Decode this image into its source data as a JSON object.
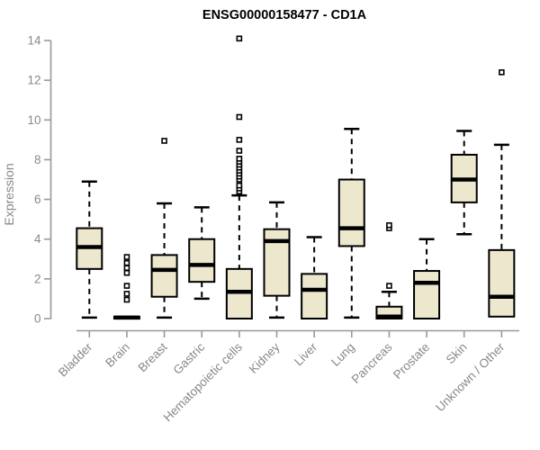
{
  "title": "ENSG00000158477 - CD1A",
  "ylabel": "Expression",
  "style": {
    "background": "#FFFFFF",
    "box_fill": "#EDE7CE",
    "line_color": "#000000",
    "axis_color": "#999999",
    "label_color": "#888888",
    "title_color": "#000000"
  },
  "chart_data": {
    "type": "boxplot",
    "title": "ENSG00000158477 - CD1A",
    "xlabel": "",
    "ylabel": "Expression",
    "ylim": [
      0,
      14
    ],
    "yticks": [
      0,
      2,
      4,
      6,
      8,
      10,
      12,
      14
    ],
    "grid": false,
    "categories": [
      "Bladder",
      "Brain",
      "Breast",
      "Gastric",
      "Hematopoietic cells",
      "Kidney",
      "Liver",
      "Lung",
      "Pancreas",
      "Prostate",
      "Skin",
      "Unknown / Other"
    ],
    "boxes": [
      {
        "category": "Bladder",
        "whisker_low": 0.05,
        "q1": 2.5,
        "median": 3.6,
        "q3": 4.55,
        "whisker_high": 6.9,
        "outliers": []
      },
      {
        "category": "Brain",
        "whisker_low": 0,
        "q1": 0,
        "median": 0.05,
        "q3": 0.1,
        "whisker_high": 0.1,
        "outliers": [
          3.1,
          2.8,
          2.55,
          2.3,
          1.65,
          1.25,
          0.95
        ]
      },
      {
        "category": "Breast",
        "whisker_low": 0.05,
        "q1": 1.1,
        "median": 2.45,
        "q3": 3.2,
        "whisker_high": 5.8,
        "outliers": [
          8.95
        ]
      },
      {
        "category": "Gastric",
        "whisker_low": 1.0,
        "q1": 1.85,
        "median": 2.7,
        "q3": 4.0,
        "whisker_high": 5.6,
        "outliers": []
      },
      {
        "category": "Hematopoietic cells",
        "whisker_low": 0,
        "q1": 0,
        "median": 1.35,
        "q3": 2.5,
        "whisker_high": 6.2,
        "outliers": [
          6.4,
          6.55,
          6.7,
          7.0,
          7.15,
          7.3,
          7.45,
          7.6,
          7.75,
          7.9,
          8.05,
          8.45,
          9.0,
          10.15,
          14.1
        ]
      },
      {
        "category": "Kidney",
        "whisker_low": 0.05,
        "q1": 1.15,
        "median": 3.9,
        "q3": 4.5,
        "whisker_high": 5.85,
        "outliers": []
      },
      {
        "category": "Liver",
        "whisker_low": 0,
        "q1": 0,
        "median": 1.45,
        "q3": 2.25,
        "whisker_high": 4.1,
        "outliers": []
      },
      {
        "category": "Lung",
        "whisker_low": 0.05,
        "q1": 3.65,
        "median": 4.55,
        "q3": 7.0,
        "whisker_high": 9.55,
        "outliers": []
      },
      {
        "category": "Pancreas",
        "whisker_low": 0,
        "q1": 0,
        "median": 0.1,
        "q3": 0.6,
        "whisker_high": 1.35,
        "outliers": [
          1.65,
          4.55,
          4.7
        ]
      },
      {
        "category": "Prostate",
        "whisker_low": 0,
        "q1": 0,
        "median": 1.8,
        "q3": 2.4,
        "whisker_high": 4.0,
        "outliers": []
      },
      {
        "category": "Skin",
        "whisker_low": 4.25,
        "q1": 5.85,
        "median": 7.0,
        "q3": 8.25,
        "whisker_high": 9.45,
        "outliers": []
      },
      {
        "category": "Unknown / Other",
        "whisker_low": 0.1,
        "q1": 0.1,
        "median": 1.1,
        "q3": 3.45,
        "whisker_high": 8.75,
        "outliers": [
          12.4
        ]
      }
    ]
  }
}
